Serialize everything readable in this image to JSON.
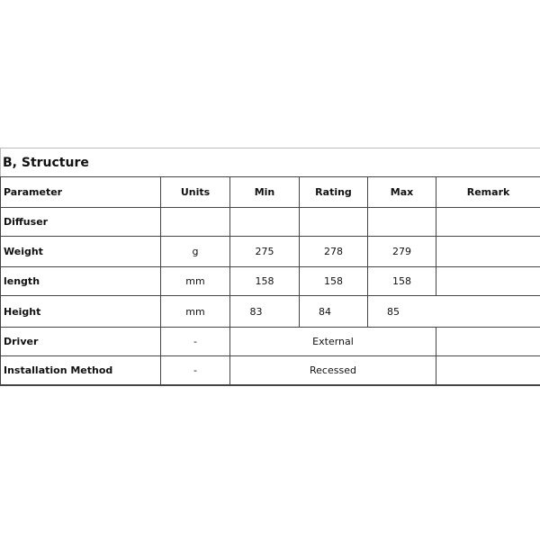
{
  "title": "B, Structure",
  "columns": [
    "Parameter",
    "Units",
    "Min",
    "Rating",
    "Max",
    "Remark"
  ],
  "rows": [
    {
      "parameter": "Diffuser",
      "units": "",
      "min": "",
      "rating": "",
      "max": "",
      "remark": ""
    },
    {
      "parameter": "Weight",
      "units": "g",
      "min": "275",
      "rating": "278",
      "max": "279",
      "remark": ""
    },
    {
      "parameter": "length",
      "units": "mm",
      "min": "158",
      "rating": "158",
      "max": "158",
      "remark": ""
    },
    {
      "parameter": "Height",
      "units": "mm",
      "min": "83",
      "rating": "84",
      "max": "85",
      "remark": ""
    },
    {
      "parameter": "Driver",
      "units": "-",
      "value": "External",
      "remark": ""
    },
    {
      "parameter": "Installation Method",
      "units": "-",
      "value": "Recessed",
      "remark": ""
    }
  ]
}
